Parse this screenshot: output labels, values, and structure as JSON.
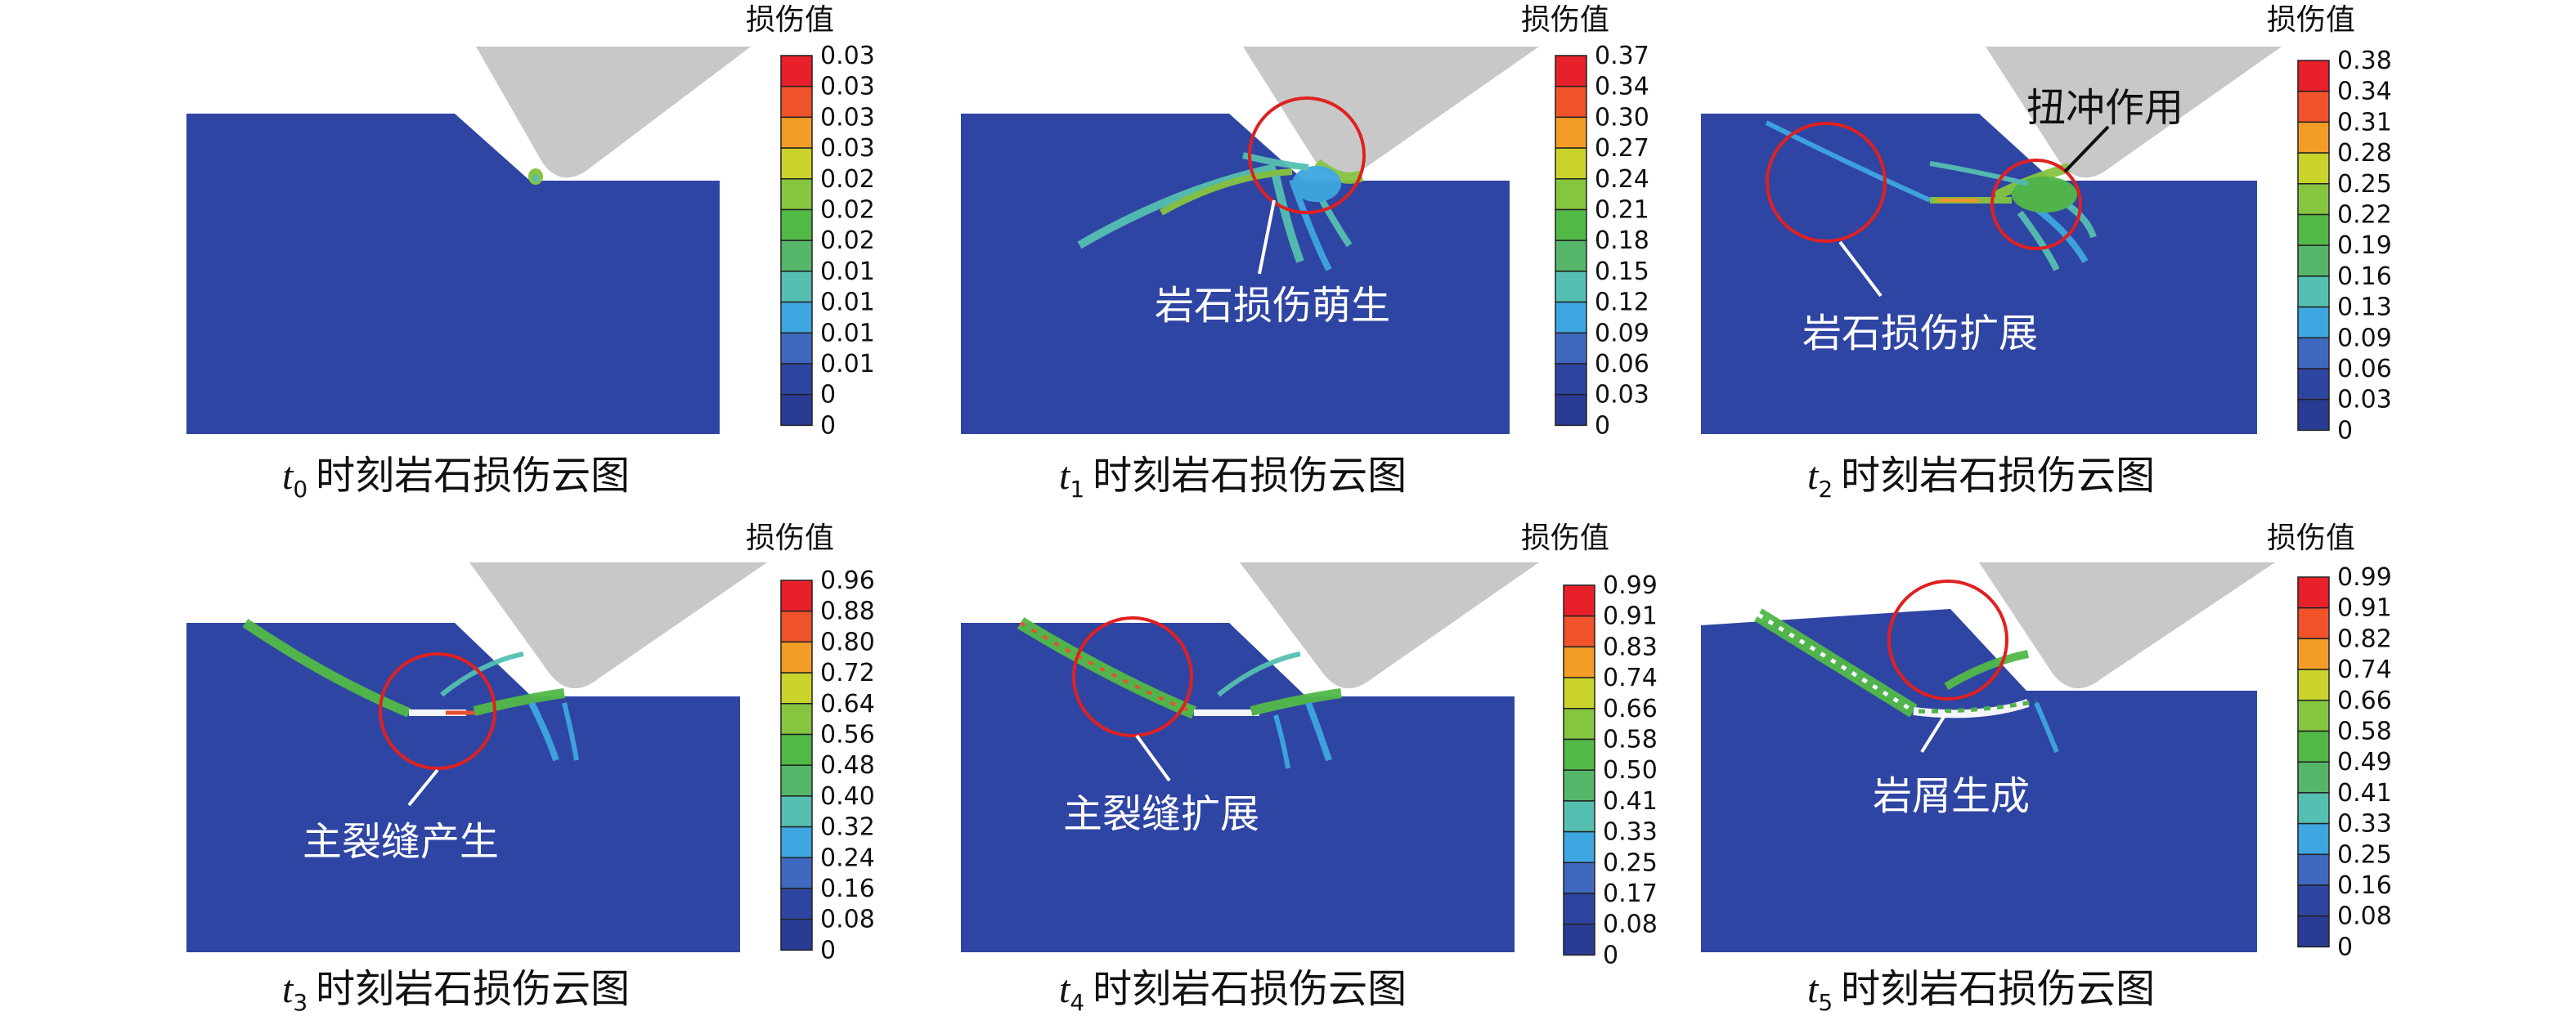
{
  "legend_title": "损伤值",
  "colorbar_colors": [
    "#e8202a",
    "#f0522a",
    "#f49d26",
    "#c9d32b",
    "#86c540",
    "#52b947",
    "#55b66a",
    "#55c0b1",
    "#3ea6e0",
    "#3f69bf",
    "#2e45a0",
    "#2a3b93"
  ],
  "colors": {
    "rock": "#2f45a3",
    "tool": "#c8c8c8",
    "circle": "#e02020"
  },
  "panels": [
    {
      "caption_t": "t",
      "caption_sub": "0",
      "caption_text": "时刻岩石损伤云图",
      "ticks": [
        "0.03",
        "0.03",
        "0.03",
        "0.03",
        "0.02",
        "0.02",
        "0.02",
        "0.01",
        "0.01",
        "0.01",
        "0.01",
        "0",
        "0"
      ],
      "annotation": ""
    },
    {
      "caption_t": "t",
      "caption_sub": "1",
      "caption_text": "时刻岩石损伤云图",
      "ticks": [
        "0.37",
        "0.34",
        "0.30",
        "0.27",
        "0.24",
        "0.21",
        "0.18",
        "0.15",
        "0.12",
        "0.09",
        "0.06",
        "0.03",
        "0"
      ],
      "annotation": "岩石损伤萌生"
    },
    {
      "caption_t": "t",
      "caption_sub": "2",
      "caption_text": "时刻岩石损伤云图",
      "ticks": [
        "0.38",
        "0.34",
        "0.31",
        "0.28",
        "0.25",
        "0.22",
        "0.19",
        "0.16",
        "0.13",
        "0.09",
        "0.06",
        "0.03",
        "0"
      ],
      "annotation": "岩石损伤扩展",
      "annotation2": "扭冲作用"
    },
    {
      "caption_t": "t",
      "caption_sub": "3",
      "caption_text": "时刻岩石损伤云图",
      "ticks": [
        "0.96",
        "0.88",
        "0.80",
        "0.72",
        "0.64",
        "0.56",
        "0.48",
        "0.40",
        "0.32",
        "0.24",
        "0.16",
        "0.08",
        "0"
      ],
      "annotation": "主裂缝产生"
    },
    {
      "caption_t": "t",
      "caption_sub": "4",
      "caption_text": "时刻岩石损伤云图",
      "ticks": [
        "0.99",
        "0.91",
        "0.83",
        "0.74",
        "0.66",
        "0.58",
        "0.50",
        "0.41",
        "0.33",
        "0.25",
        "0.17",
        "0.08",
        "0"
      ],
      "annotation": "主裂缝扩展"
    },
    {
      "caption_t": "t",
      "caption_sub": "5",
      "caption_text": "时刻岩石损伤云图",
      "ticks": [
        "0.99",
        "0.91",
        "0.82",
        "0.74",
        "0.66",
        "0.58",
        "0.49",
        "0.41",
        "0.33",
        "0.25",
        "0.16",
        "0.08",
        "0"
      ],
      "annotation": "岩屑生成"
    }
  ]
}
